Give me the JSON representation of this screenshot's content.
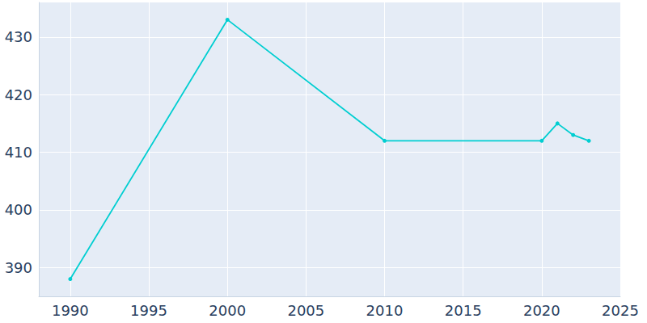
{
  "chart_data": {
    "type": "line",
    "x": [
      1990,
      2000,
      2010,
      2020,
      2021,
      2022,
      2023
    ],
    "values": [
      388,
      433,
      412,
      412,
      415,
      413,
      412
    ],
    "color": "#00ced1",
    "marker": "circle",
    "line_style": "solid",
    "xlim": [
      1988,
      2025
    ],
    "xticks": [
      1990,
      1995,
      2000,
      2005,
      2010,
      2015,
      2020,
      2025
    ],
    "ylim": [
      385,
      436
    ],
    "yticks": [
      390,
      400,
      410,
      420,
      430
    ],
    "grid": true
  }
}
